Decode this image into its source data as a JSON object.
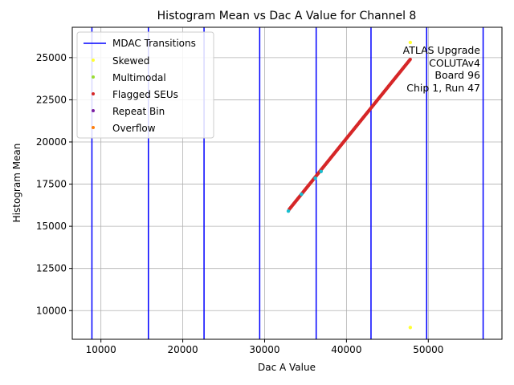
{
  "chart_data": {
    "type": "scatter",
    "title": "Histogram Mean vs Dac A Value for Channel 8",
    "xlabel": "Dac A Value",
    "ylabel": "Histogram Mean",
    "xlim": [
      6500,
      59000
    ],
    "ylim": [
      8300,
      26800
    ],
    "xticks": [
      10000,
      20000,
      30000,
      40000,
      50000
    ],
    "xtick_labels": [
      "10000",
      "20000",
      "30000",
      "40000",
      "50000"
    ],
    "yticks": [
      10000,
      12500,
      15000,
      17500,
      20000,
      22500,
      25000
    ],
    "ytick_labels": [
      "10000",
      "12500",
      "15000",
      "17500",
      "20000",
      "22500",
      "25000"
    ],
    "grid": true,
    "legend_position": "top-left",
    "mdac_transitions": {
      "name": "MDAC Transitions",
      "color": "#0000ff",
      "x": [
        8900,
        15800,
        22600,
        29400,
        36300,
        43000,
        49800,
        56700
      ]
    },
    "series": [
      {
        "name": "Skewed",
        "color": "#ffff33",
        "points": [
          [
            47800,
            25900
          ],
          [
            47800,
            9000
          ]
        ]
      },
      {
        "name": "Multimodal",
        "color": "#99dd33",
        "points": []
      },
      {
        "name": "Flagged SEUs",
        "color": "#d62728",
        "line": {
          "x_start": 33000,
          "y_start": 16000,
          "x_end": 47800,
          "y_end": 24900
        }
      },
      {
        "name": "Repeat Bin",
        "color": "#7b1fa2",
        "points": []
      },
      {
        "name": "Overflow",
        "color": "#ff7f0e",
        "points": []
      }
    ],
    "cyan_points": {
      "color": "#17becf",
      "points": [
        [
          32900,
          15900
        ],
        [
          34500,
          16900
        ],
        [
          36200,
          17850
        ],
        [
          36900,
          18250
        ]
      ]
    },
    "annotation": [
      "ATLAS Upgrade",
      "COLUTAv4",
      "Board 96",
      "Chip 1, Run 47"
    ]
  }
}
